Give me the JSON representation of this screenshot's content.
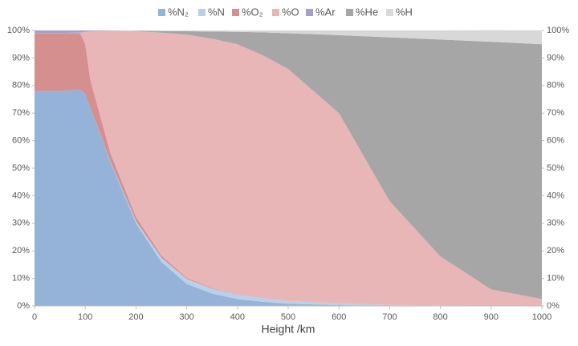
{
  "chart_data": {
    "type": "stacked-area",
    "x_label": "Height /km",
    "x": [
      0,
      50,
      90,
      100,
      110,
      150,
      200,
      250,
      300,
      350,
      400,
      450,
      500,
      600,
      700,
      800,
      900,
      1000
    ],
    "series": [
      {
        "name": "%N₂",
        "color": "#95b3d9",
        "values": [
          78,
          78,
          78.5,
          77,
          72,
          52,
          30,
          16,
          8,
          4.5,
          2.5,
          1.5,
          0.8,
          0.3,
          0.1,
          0,
          0,
          0
        ]
      },
      {
        "name": "%N",
        "color": "#b9d0e9",
        "values": [
          0,
          0,
          0,
          0,
          0,
          0.2,
          0.8,
          1.5,
          1.8,
          1.8,
          1.6,
          1.3,
          1,
          0.6,
          0.3,
          0.2,
          0.1,
          0
        ]
      },
      {
        "name": "%O₂",
        "color": "#d58f8f",
        "values": [
          21,
          21,
          20.5,
          18,
          10,
          3,
          1.5,
          0.8,
          0.4,
          0.2,
          0.1,
          0,
          0,
          0,
          0,
          0,
          0,
          0
        ]
      },
      {
        "name": "%O",
        "color": "#e8b6b6",
        "values": [
          0.1,
          0.1,
          0.2,
          4.5,
          17.7,
          44.7,
          67.4,
          80.9,
          88.3,
          90.5,
          90.8,
          88.2,
          84.2,
          69.1,
          37.6,
          17.8,
          5.9,
          2.5
        ]
      },
      {
        "name": "%Ar",
        "color": "#a7a0cb",
        "values": [
          0.9,
          0.9,
          0.8,
          0.5,
          0.3,
          0.1,
          0,
          0,
          0,
          0,
          0,
          0,
          0,
          0,
          0,
          0,
          0,
          0
        ]
      },
      {
        "name": "%He",
        "color": "#a6a6a6",
        "values": [
          0,
          0,
          0,
          0,
          0,
          0,
          0.2,
          0.6,
          1.2,
          2.6,
          4.5,
          8.3,
          13,
          28.3,
          59.5,
          78.7,
          89.9,
          92.5
        ]
      },
      {
        "name": "%H",
        "color": "#d8d8d8",
        "values": [
          0,
          0,
          0,
          0,
          0,
          0,
          0.1,
          0.2,
          0.3,
          0.4,
          0.5,
          0.7,
          1,
          1.7,
          2.5,
          3.3,
          4.2,
          5
        ]
      }
    ],
    "xlim": [
      0,
      1000
    ],
    "xticks": [
      0,
      100,
      200,
      300,
      400,
      500,
      600,
      700,
      800,
      900,
      1000
    ],
    "ylim": [
      0,
      100
    ],
    "yticks": [
      {
        "value": 0,
        "label": "0%"
      },
      {
        "value": 10,
        "label": "10%"
      },
      {
        "value": 20,
        "label": "20%"
      },
      {
        "value": 30,
        "label": "30%"
      },
      {
        "value": 40,
        "label": "40%"
      },
      {
        "value": 50,
        "label": "50%"
      },
      {
        "value": 60,
        "label": "60%"
      },
      {
        "value": 70,
        "label": "70%"
      },
      {
        "value": 80,
        "label": "80%"
      },
      {
        "value": 90,
        "label": "90%"
      },
      {
        "value": 100,
        "label": "100%"
      }
    ],
    "y2lim": [
      0,
      100
    ],
    "y2ticks": [
      {
        "value": 0,
        "label": "0%"
      },
      {
        "value": 10,
        "label": "10%"
      },
      {
        "value": 20,
        "label": "20%"
      },
      {
        "value": 30,
        "label": "30%"
      },
      {
        "value": 40,
        "label": "40%"
      },
      {
        "value": 50,
        "label": "50%"
      },
      {
        "value": 60,
        "label": "60%"
      },
      {
        "value": 70,
        "label": "70%"
      },
      {
        "value": 80,
        "label": "80%"
      },
      {
        "value": 90,
        "label": "90%"
      },
      {
        "value": 100,
        "label": "100%"
      }
    ],
    "legend": "top"
  }
}
